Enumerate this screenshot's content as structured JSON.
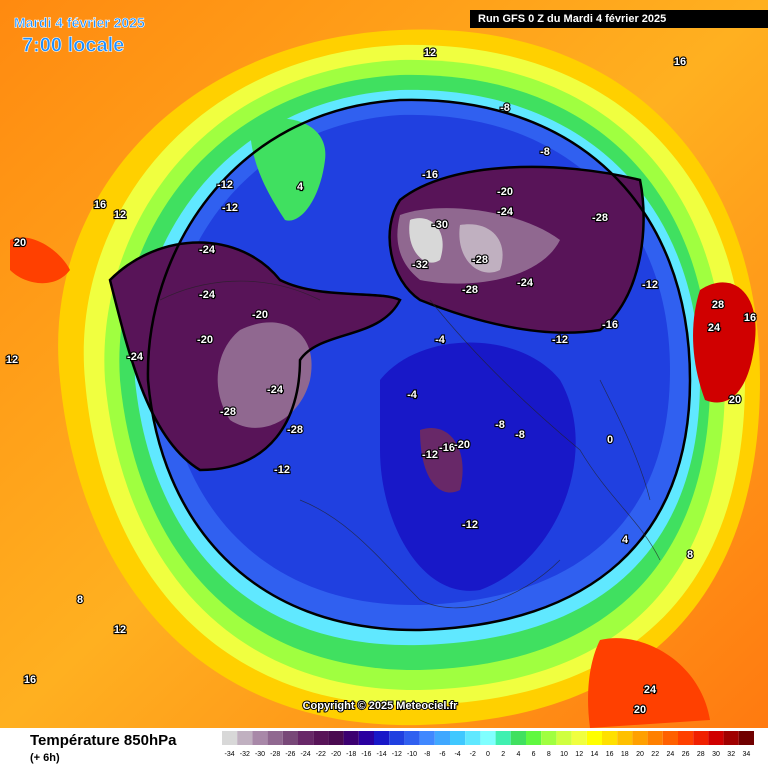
{
  "header": {
    "date": "Mardi 4 février 2025",
    "time": "7:00 locale",
    "run": "Run GFS 0 Z du Mardi 4 février 2025"
  },
  "footer": {
    "variable": "Température 850hPa",
    "lead": "(+ 6h)",
    "copyright": "Copyright © 2025 Meteociel.fr"
  },
  "colorbar": {
    "ticks": [
      -34,
      -32,
      -30,
      -28,
      -26,
      -24,
      -22,
      -20,
      -18,
      -16,
      -14,
      -12,
      -10,
      -8,
      -6,
      -4,
      -2,
      0,
      2,
      4,
      6,
      8,
      10,
      12,
      14,
      16,
      18,
      20,
      22,
      24,
      26,
      28,
      30,
      32,
      34
    ],
    "colors": [
      "#d8d8d8",
      "#c0b0c0",
      "#a888a8",
      "#906890",
      "#784878",
      "#682868",
      "#581458",
      "#4a0a50",
      "#3c0070",
      "#2a00a0",
      "#1818c8",
      "#2040e0",
      "#3060f0",
      "#4088ff",
      "#40a8ff",
      "#40c8ff",
      "#60e8ff",
      "#80ffff",
      "#40f0b0",
      "#40e060",
      "#60f840",
      "#a0ff40",
      "#d0ff40",
      "#f0ff40",
      "#ffff00",
      "#ffe000",
      "#ffc000",
      "#ffa000",
      "#ff8000",
      "#ff6000",
      "#ff4000",
      "#f02000",
      "#d00000",
      "#a00000",
      "#700000"
    ]
  },
  "map_labels": [
    -12,
    -12,
    -24,
    -24,
    -20,
    -24,
    -20,
    -28,
    -24,
    -28,
    -12,
    -16,
    -20,
    -24,
    -32,
    -28,
    -24,
    -28,
    -30,
    -28,
    -12,
    -16,
    -12,
    -8,
    -8,
    -4,
    -12,
    -16,
    0,
    4,
    12,
    16,
    20,
    20,
    28,
    24,
    16,
    12,
    8,
    4,
    16,
    12,
    8,
    24,
    20,
    -4,
    -8,
    -8,
    -12,
    -20,
    16,
    12
  ]
}
